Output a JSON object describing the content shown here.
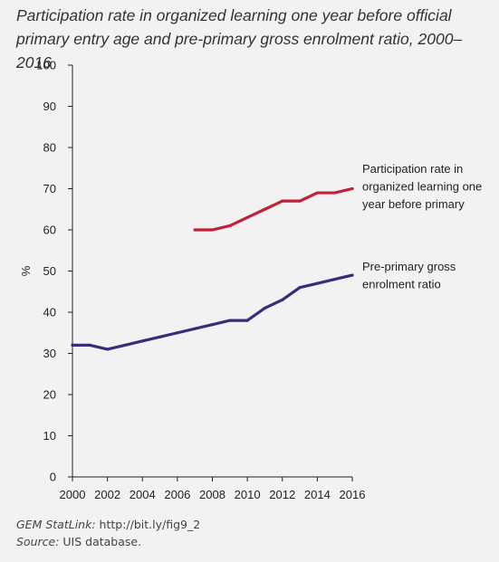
{
  "title": {
    "line1": "Participation rate in organized learning one year before official",
    "line2": "primary entry age and pre-primary gross enrolment ratio, 2000–2016"
  },
  "footer": {
    "statlink_label": "GEM StatLink:",
    "statlink_url": "http://bit.ly/fig9_2",
    "source_label": "Source:",
    "source_text": "UIS database."
  },
  "chart_data": {
    "type": "line",
    "title": "Participation rate in organized learning one year before official primary entry age and pre-primary gross enrolment ratio, 2000–2016",
    "xlabel": "",
    "ylabel": "%",
    "xlim": [
      2000,
      2016
    ],
    "ylim": [
      0,
      100
    ],
    "x_ticks": [
      "2000",
      "2002",
      "2004",
      "2006",
      "2008",
      "2010",
      "2012",
      "2014",
      "2016"
    ],
    "y_ticks": [
      "0",
      "10",
      "20",
      "30",
      "40",
      "50",
      "60",
      "70",
      "80",
      "90",
      "100"
    ],
    "grid": false,
    "series": [
      {
        "name": "Participation rate in organized learning one year before primary",
        "label_lines": [
          "Participation rate in",
          "organized learning one",
          "year before primary"
        ],
        "color": "#c0203a",
        "x": [
          2007,
          2008,
          2009,
          2010,
          2011,
          2012,
          2013,
          2014,
          2015,
          2016
        ],
        "y": [
          60,
          60,
          61,
          63,
          65,
          67,
          67,
          69,
          69,
          70
        ]
      },
      {
        "name": "Pre-primary gross enrolment ratio",
        "label_lines": [
          "Pre-primary gross",
          "enrolment ratio"
        ],
        "color": "#3d2a7a",
        "x": [
          2000,
          2001,
          2002,
          2003,
          2004,
          2005,
          2006,
          2007,
          2008,
          2009,
          2010,
          2011,
          2012,
          2013,
          2014,
          2015,
          2016
        ],
        "y": [
          32,
          32,
          31,
          32,
          33,
          34,
          35,
          36,
          37,
          38,
          38,
          41,
          43,
          46,
          47,
          48,
          49
        ]
      }
    ]
  }
}
